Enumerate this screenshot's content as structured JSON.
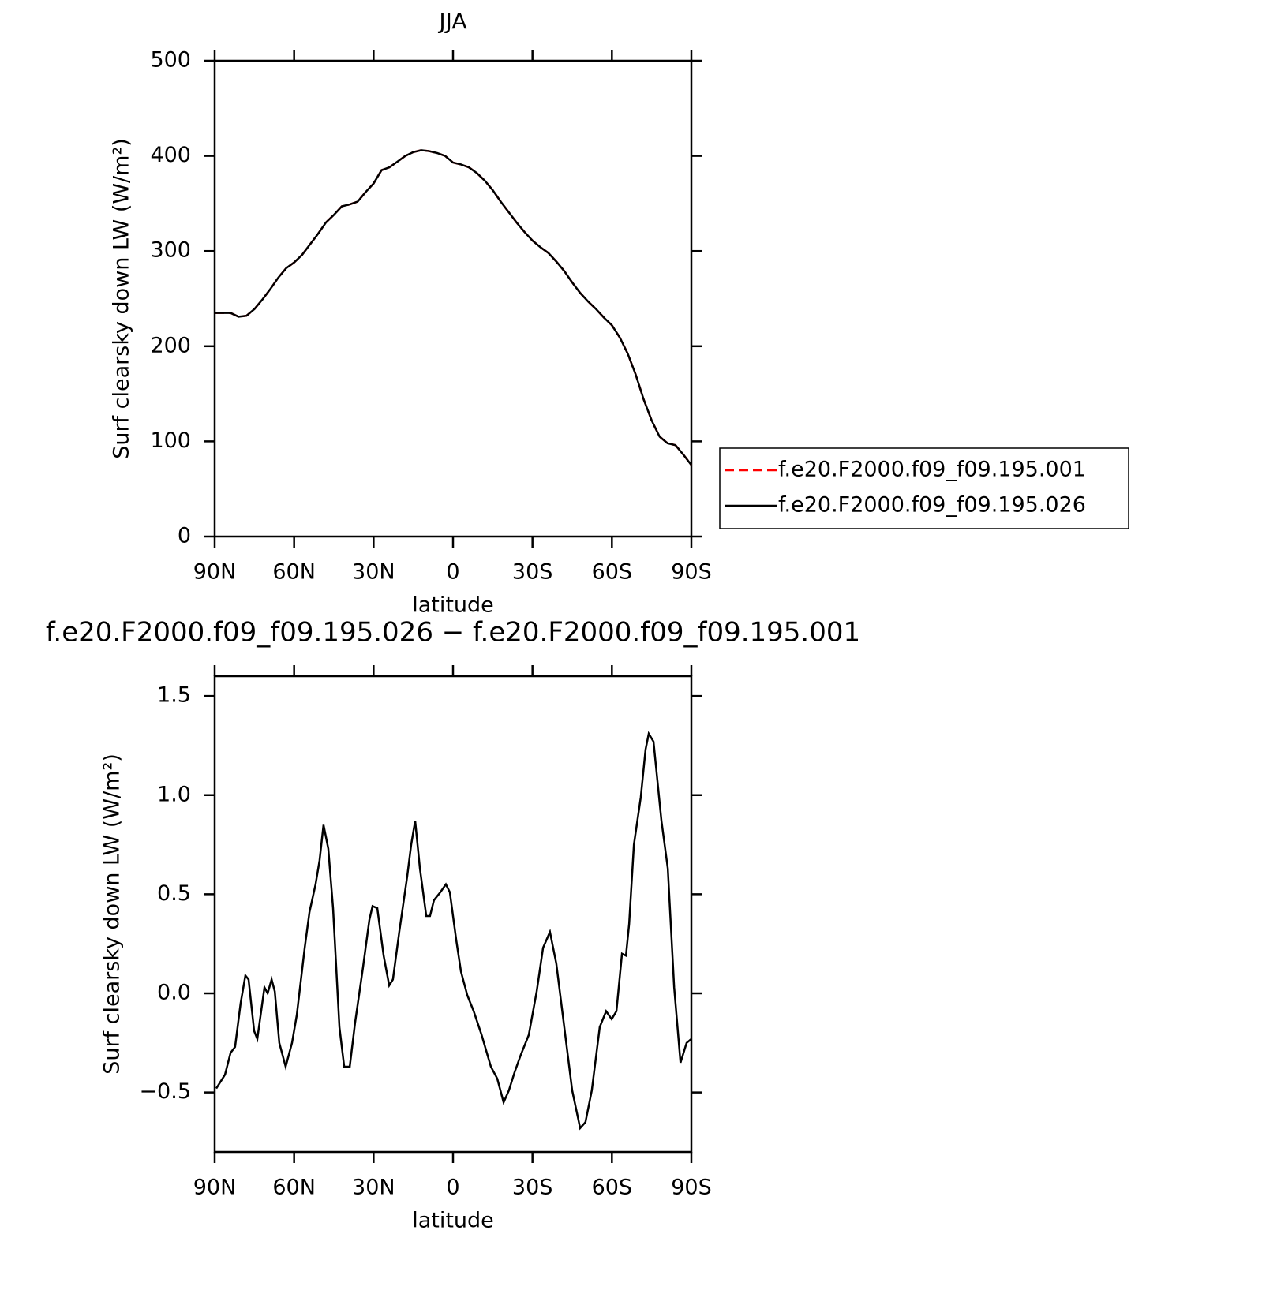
{
  "chart_data": [
    {
      "type": "line",
      "title": "JJA",
      "xlabel": "latitude",
      "ylabel": "Surf clearsky down LW (W/m²)",
      "x": [
        90,
        87,
        84,
        81,
        78,
        75,
        72,
        69,
        66,
        63,
        60,
        57,
        54,
        51,
        48,
        45,
        42,
        39,
        36,
        33,
        30,
        27,
        24,
        21,
        18,
        15,
        12,
        9,
        6,
        3,
        0,
        -3,
        -6,
        -9,
        -12,
        -15,
        -18,
        -21,
        -24,
        -27,
        -30,
        -33,
        -36,
        -39,
        -42,
        -45,
        -48,
        -51,
        -54,
        -57,
        -60,
        -63,
        -66,
        -69,
        -72,
        -75,
        -78,
        -81,
        -84,
        -87,
        -90
      ],
      "series": [
        {
          "name": "f.e20.F2000.f09_f09.195.001",
          "color": "#ff0000",
          "style": "dashed",
          "values": [
            235,
            235,
            235,
            231,
            232,
            239,
            249,
            260,
            272,
            282,
            288,
            296,
            307,
            318,
            330,
            338,
            347,
            349,
            352,
            362,
            371,
            385,
            388,
            394,
            400,
            404,
            406,
            405,
            403,
            400,
            393,
            391,
            388,
            382,
            374,
            364,
            352,
            341,
            330,
            320,
            311,
            304,
            298,
            289,
            279,
            267,
            256,
            247,
            239,
            230,
            222,
            209,
            192,
            170,
            144,
            122,
            105,
            98,
            96,
            86,
            75
          ]
        },
        {
          "name": "f.e20.F2000.f09_f09.195.026",
          "color": "#000000",
          "style": "solid",
          "values": [
            235,
            235,
            235,
            231,
            232,
            239,
            249,
            260,
            272,
            282,
            288,
            296,
            307,
            318,
            330,
            338,
            347,
            349,
            352,
            362,
            371,
            385,
            388,
            394,
            400,
            404,
            406,
            405,
            403,
            400,
            393,
            391,
            388,
            382,
            374,
            364,
            352,
            341,
            330,
            320,
            311,
            304,
            298,
            289,
            279,
            267,
            256,
            247,
            239,
            230,
            222,
            209,
            192,
            170,
            144,
            122,
            105,
            98,
            96,
            86,
            75
          ]
        }
      ],
      "xlim": [
        90,
        -90
      ],
      "ylim": [
        0,
        500
      ],
      "xticks": [
        {
          "value": 90,
          "label": "90N"
        },
        {
          "value": 60,
          "label": "60N"
        },
        {
          "value": 30,
          "label": "30N"
        },
        0,
        {
          "value": -30,
          "label": "30S"
        },
        {
          "value": -60,
          "label": "60S"
        },
        {
          "value": -90,
          "label": "90S"
        }
      ],
      "yticks": [
        0,
        100,
        200,
        300,
        400,
        500
      ],
      "legend": "right"
    },
    {
      "type": "line",
      "title": "f.e20.F2000.f09_f09.195.026 − f.e20.F2000.f09_f09.195.001",
      "xlabel": "latitude",
      "ylabel": "Surf clearsky down LW (W/m²)",
      "x": [
        89.4,
        86.1,
        84.0,
        82.3,
        80.2,
        78.4,
        77.2,
        75.1,
        73.9,
        71.2,
        70.0,
        68.5,
        67.3,
        65.6,
        63.2,
        60.8,
        59.0,
        56.0,
        54.2,
        51.9,
        50.4,
        48.9,
        47.1,
        45.3,
        42.9,
        41.1,
        39.0,
        37.0,
        34.0,
        31.6,
        30.4,
        28.6,
        26.2,
        24.1,
        22.7,
        20.3,
        17.3,
        15.8,
        14.3,
        12.5,
        10.1,
        8.7,
        7.2,
        4.8,
        2.7,
        1.2,
        -1.2,
        -3.0,
        -5.4,
        -7.8,
        -10.8,
        -14.3,
        -16.7,
        -19.1,
        -21.1,
        -23.2,
        -25.6,
        -28.6,
        -31.6,
        -34.0,
        -36.6,
        -39.0,
        -42.0,
        -45.0,
        -48.0,
        -50.0,
        -52.4,
        -55.4,
        -57.8,
        -59.9,
        -61.7,
        -63.8,
        -65.3,
        -66.5,
        -68.3,
        -70.9,
        -72.7,
        -73.9,
        -75.7,
        -78.7,
        -81.1,
        -83.5,
        -85.9,
        -88.2,
        -90.0
      ],
      "series": [
        {
          "color": "#000000",
          "style": "solid",
          "values": [
            -0.48,
            -0.41,
            -0.3,
            -0.27,
            -0.05,
            0.09,
            0.07,
            -0.19,
            -0.23,
            0.03,
            0,
            0.07,
            0.01,
            -0.25,
            -0.37,
            -0.25,
            -0.11,
            0.23,
            0.41,
            0.55,
            0.67,
            0.85,
            0.73,
            0.43,
            -0.17,
            -0.37,
            -0.37,
            -0.15,
            0.13,
            0.37,
            0.44,
            0.43,
            0.19,
            0.04,
            0.07,
            0.31,
            0.59,
            0.75,
            0.87,
            0.63,
            0.39,
            0.39,
            0.47,
            0.51,
            0.55,
            0.51,
            0.27,
            0.11,
            -0.01,
            -0.09,
            -0.21,
            -0.37,
            -0.43,
            -0.55,
            -0.49,
            -0.4,
            -0.31,
            -0.21,
            0.01,
            0.23,
            0.31,
            0.15,
            -0.17,
            -0.49,
            -0.68,
            -0.65,
            -0.49,
            -0.17,
            -0.09,
            -0.13,
            -0.09,
            0.2,
            0.19,
            0.35,
            0.75,
            0.99,
            1.23,
            1.31,
            1.27,
            0.87,
            0.63,
            0.03,
            -0.35,
            -0.25,
            -0.23
          ]
        }
      ],
      "xlim": [
        90,
        -90
      ],
      "ylim": [
        -0.8,
        1.6
      ],
      "xticks": [
        {
          "value": 90,
          "label": "90N"
        },
        {
          "value": 60,
          "label": "60N"
        },
        {
          "value": 30,
          "label": "30N"
        },
        0,
        {
          "value": -30,
          "label": "30S"
        },
        {
          "value": -60,
          "label": "60S"
        },
        {
          "value": -90,
          "label": "90S"
        }
      ],
      "yticks": [
        {
          "value": -0.5,
          "label": "−0.5"
        },
        {
          "value": 0,
          "label": "0.0"
        },
        0.5,
        {
          "value": 1,
          "label": "1.0"
        },
        1.5
      ]
    }
  ]
}
